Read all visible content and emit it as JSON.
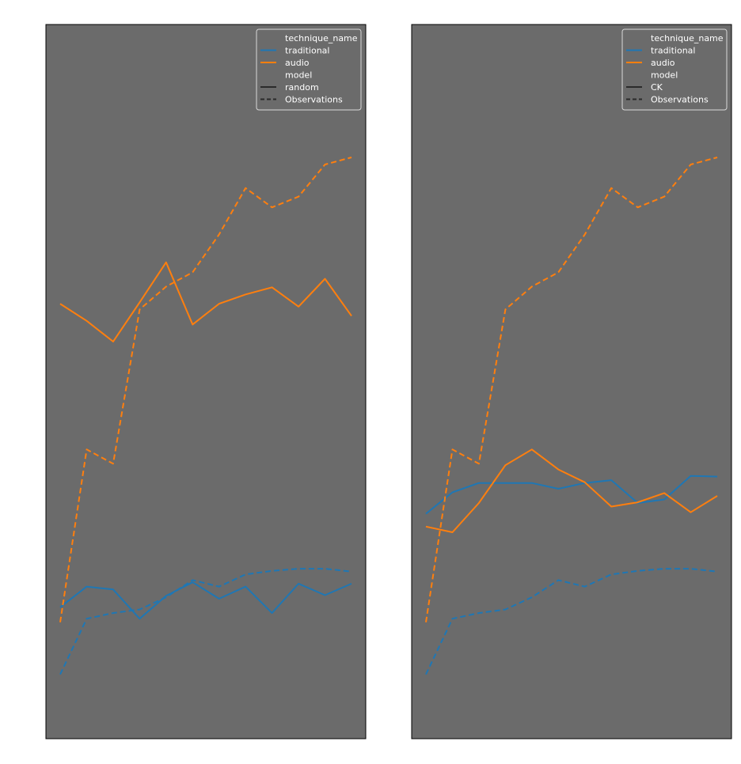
{
  "colors": {
    "plot_background": "#6b6b6b",
    "frame": "#000000",
    "traditional": "#1f77b4",
    "audio": "#ff7f0e",
    "legend_text": "#ffffff",
    "legend_line_black": "#2a2a2a"
  },
  "chart_data": [
    {
      "type": "line",
      "grid": false,
      "x": [
        1,
        2,
        3,
        4,
        5,
        6,
        7,
        8,
        9,
        10,
        11,
        12
      ],
      "ylim": [
        0,
        1
      ],
      "legend": {
        "placement": "top-right",
        "entries": [
          {
            "label": "technique_name",
            "style": "header"
          },
          {
            "label": "traditional",
            "style": "solid",
            "color_key": "traditional"
          },
          {
            "label": "audio",
            "style": "solid",
            "color_key": "audio"
          },
          {
            "label": "model",
            "style": "header"
          },
          {
            "label": "random",
            "style": "solid",
            "color_key": "legend_line_black"
          },
          {
            "label": "Observations",
            "style": "dashed",
            "color_key": "legend_line_black"
          }
        ]
      },
      "series": [
        {
          "technique": "traditional",
          "model": "random",
          "dash": false,
          "color_key": "traditional",
          "values": [
            0.184,
            0.213,
            0.209,
            0.168,
            0.2,
            0.219,
            0.196,
            0.213,
            0.176,
            0.217,
            0.201,
            0.217
          ]
        },
        {
          "technique": "audio",
          "model": "random",
          "dash": false,
          "color_key": "audio",
          "values": [
            0.609,
            0.585,
            0.556,
            0.611,
            0.667,
            0.58,
            0.609,
            0.622,
            0.632,
            0.605,
            0.644,
            0.592
          ]
        },
        {
          "technique": "traditional",
          "model": "Observations",
          "dash": true,
          "color_key": "traditional",
          "values": [
            0.09,
            0.168,
            0.176,
            0.181,
            0.198,
            0.222,
            0.213,
            0.23,
            0.235,
            0.238,
            0.238,
            0.234
          ]
        },
        {
          "technique": "audio",
          "model": "Observations",
          "dash": true,
          "color_key": "audio",
          "values": [
            0.163,
            0.405,
            0.385,
            0.601,
            0.633,
            0.653,
            0.706,
            0.771,
            0.744,
            0.759,
            0.804,
            0.814
          ]
        }
      ]
    },
    {
      "type": "line",
      "grid": false,
      "x": [
        1,
        2,
        3,
        4,
        5,
        6,
        7,
        8,
        9,
        10,
        11,
        12
      ],
      "ylim": [
        0,
        1
      ],
      "legend": {
        "placement": "top-right",
        "entries": [
          {
            "label": "technique_name",
            "style": "header"
          },
          {
            "label": "traditional",
            "style": "solid",
            "color_key": "traditional"
          },
          {
            "label": "audio",
            "style": "solid",
            "color_key": "audio"
          },
          {
            "label": "model",
            "style": "header"
          },
          {
            "label": "CK",
            "style": "solid",
            "color_key": "legend_line_black"
          },
          {
            "label": "Observations",
            "style": "dashed",
            "color_key": "legend_line_black"
          }
        ]
      },
      "series": [
        {
          "technique": "traditional",
          "model": "CK",
          "dash": false,
          "color_key": "traditional",
          "values": [
            0.315,
            0.345,
            0.358,
            0.358,
            0.358,
            0.35,
            0.358,
            0.362,
            0.33,
            0.335,
            0.368,
            0.367
          ]
        },
        {
          "technique": "audio",
          "model": "CK",
          "dash": false,
          "color_key": "audio",
          "values": [
            0.297,
            0.289,
            0.33,
            0.383,
            0.405,
            0.377,
            0.359,
            0.325,
            0.331,
            0.344,
            0.317,
            0.34
          ]
        },
        {
          "technique": "traditional",
          "model": "Observations",
          "dash": true,
          "color_key": "traditional",
          "values": [
            0.09,
            0.168,
            0.176,
            0.181,
            0.198,
            0.222,
            0.213,
            0.23,
            0.235,
            0.238,
            0.238,
            0.234
          ]
        },
        {
          "technique": "audio",
          "model": "Observations",
          "dash": true,
          "color_key": "audio",
          "values": [
            0.163,
            0.405,
            0.385,
            0.601,
            0.633,
            0.653,
            0.706,
            0.771,
            0.744,
            0.759,
            0.804,
            0.814
          ]
        }
      ]
    }
  ]
}
